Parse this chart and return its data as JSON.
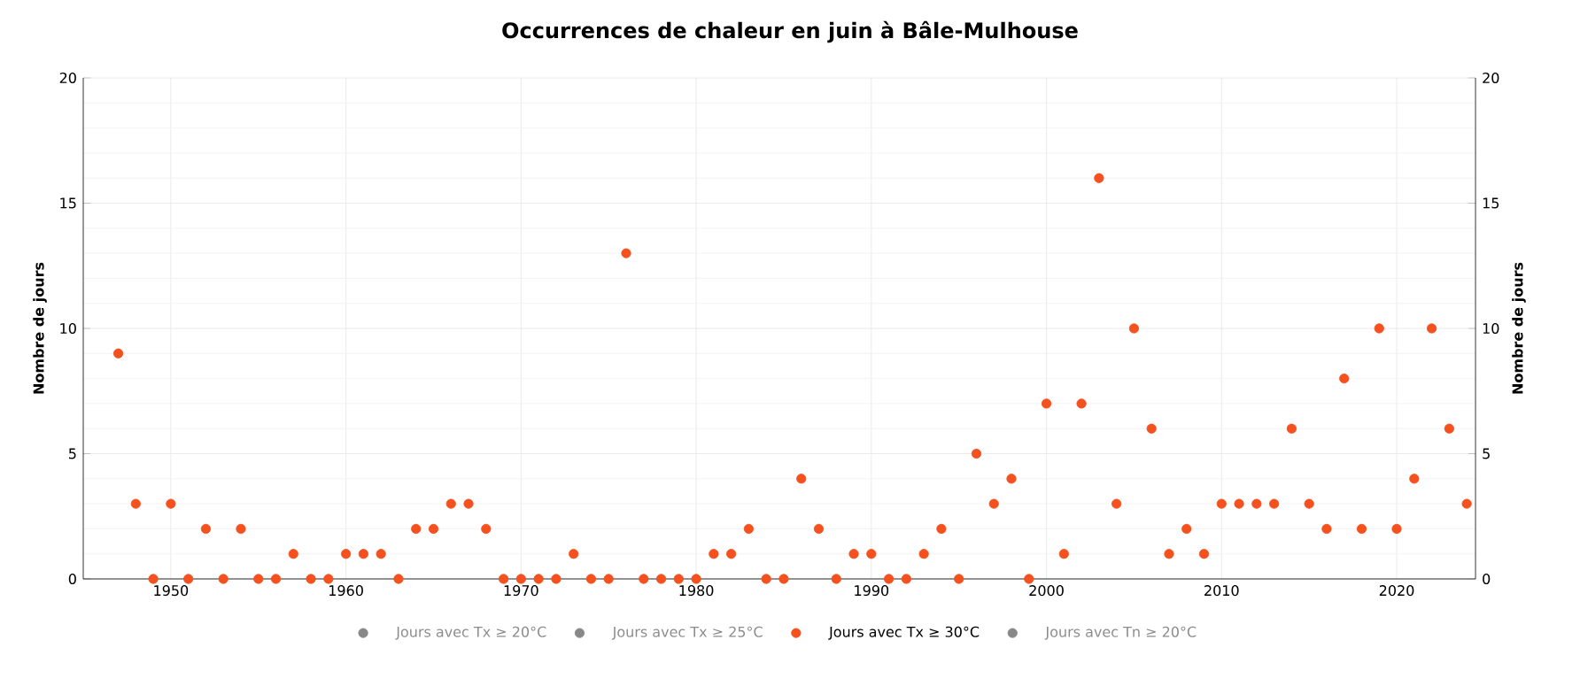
{
  "chart_data": {
    "type": "scatter",
    "title": "Occurrences de chaleur en juin à Bâle-Mulhouse",
    "ylabel": "Nombre de jours",
    "y2label": "Nombre de jours",
    "x": [
      1947,
      1948,
      1949,
      1950,
      1951,
      1952,
      1953,
      1954,
      1955,
      1956,
      1957,
      1958,
      1959,
      1960,
      1961,
      1962,
      1963,
      1964,
      1965,
      1966,
      1967,
      1968,
      1969,
      1970,
      1971,
      1972,
      1973,
      1974,
      1975,
      1976,
      1977,
      1978,
      1979,
      1980,
      1981,
      1982,
      1983,
      1984,
      1985,
      1986,
      1987,
      1988,
      1989,
      1990,
      1991,
      1992,
      1993,
      1994,
      1995,
      1996,
      1997,
      1998,
      1999,
      2000,
      2001,
      2002,
      2003,
      2004,
      2005,
      2006,
      2007,
      2008,
      2009,
      2010,
      2011,
      2012,
      2013,
      2014,
      2015,
      2016,
      2017,
      2018,
      2019,
      2020,
      2021,
      2022,
      2023,
      2024
    ],
    "series": [
      {
        "name": "Jours avec Tx ≥ 20°C",
        "color": "#888888",
        "values": [
          null,
          null,
          null,
          null,
          null,
          null,
          null,
          null,
          null,
          null,
          null,
          null,
          null,
          null,
          null,
          null,
          null,
          null,
          null,
          null,
          null,
          null,
          null,
          null,
          null,
          null,
          null,
          null,
          null,
          null,
          null,
          null,
          null,
          null,
          null,
          null,
          null,
          null,
          null,
          null,
          null,
          null,
          null,
          null,
          null,
          null,
          null,
          null,
          null,
          null,
          null,
          null,
          null,
          null,
          null,
          null,
          null,
          null,
          null,
          null,
          null,
          null,
          null,
          null,
          null,
          null,
          null,
          null,
          null,
          null,
          null,
          null,
          null,
          null,
          null,
          null,
          null,
          null
        ]
      },
      {
        "name": "Jours avec Tx ≥ 25°C",
        "color": "#888888",
        "values": [
          null,
          null,
          null,
          null,
          null,
          null,
          null,
          null,
          null,
          null,
          null,
          null,
          null,
          null,
          null,
          null,
          null,
          null,
          null,
          null,
          null,
          null,
          null,
          null,
          null,
          null,
          null,
          null,
          null,
          null,
          null,
          null,
          null,
          null,
          null,
          null,
          null,
          null,
          null,
          null,
          null,
          null,
          null,
          null,
          null,
          null,
          null,
          null,
          null,
          null,
          null,
          null,
          null,
          null,
          null,
          null,
          null,
          null,
          null,
          null,
          null,
          null,
          null,
          null,
          null,
          null,
          null,
          null,
          null,
          null,
          null,
          null,
          null,
          null,
          null,
          null,
          null,
          null
        ]
      },
      {
        "name": "Jours avec Tx ≥ 30°C",
        "color": "#f4511e",
        "values": [
          9,
          3,
          0,
          3,
          0,
          2,
          0,
          2,
          0,
          0,
          1,
          0,
          0,
          1,
          1,
          1,
          0,
          2,
          2,
          3,
          3,
          2,
          0,
          0,
          0,
          0,
          1,
          0,
          0,
          13,
          0,
          0,
          0,
          0,
          1,
          1,
          2,
          0,
          0,
          4,
          2,
          0,
          1,
          1,
          0,
          0,
          1,
          2,
          0,
          5,
          3,
          4,
          0,
          7,
          1,
          7,
          16,
          3,
          10,
          6,
          1,
          2,
          1,
          3,
          3,
          3,
          3,
          6,
          3,
          2,
          8,
          2,
          10,
          2,
          4,
          10,
          6,
          3
        ]
      },
      {
        "name": "Jours avec Tn ≥ 20°C",
        "color": "#888888",
        "values": [
          null,
          null,
          null,
          null,
          null,
          null,
          null,
          null,
          null,
          null,
          null,
          null,
          null,
          null,
          null,
          null,
          null,
          null,
          null,
          null,
          null,
          null,
          null,
          null,
          null,
          null,
          null,
          null,
          null,
          null,
          null,
          null,
          null,
          null,
          null,
          null,
          null,
          null,
          null,
          null,
          null,
          null,
          null,
          null,
          null,
          null,
          null,
          null,
          null,
          null,
          null,
          null,
          null,
          null,
          null,
          null,
          null,
          null,
          null,
          null,
          null,
          null,
          null,
          null,
          null,
          null,
          null,
          null,
          null,
          null,
          null,
          null,
          null,
          null,
          null,
          null,
          null,
          null
        ]
      }
    ],
    "xlim": [
      1945,
      2024.5
    ],
    "xticks": [
      1950,
      1960,
      1970,
      1980,
      1990,
      2000,
      2010,
      2020
    ],
    "ylim": [
      0,
      20
    ],
    "yticks": [
      0,
      5,
      10,
      15,
      20
    ],
    "y2lim": [
      0,
      20
    ],
    "y2ticks": [
      0,
      5,
      10,
      15,
      20
    ],
    "grid": true,
    "legend": "bottom"
  }
}
